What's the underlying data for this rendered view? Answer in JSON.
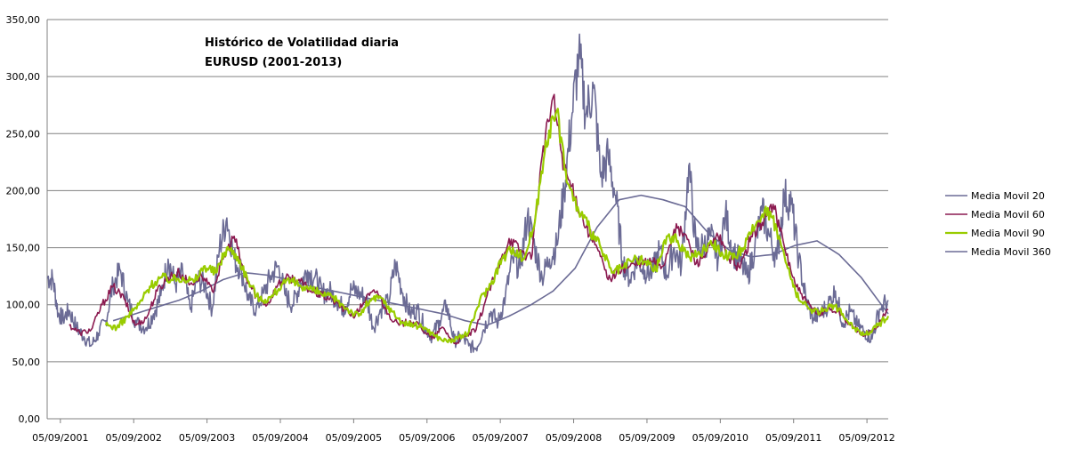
{
  "chart_data": {
    "type": "line",
    "title_lines": [
      "Histórico de Volatilidad diaria",
      "EURUSD (2001-2013)"
    ],
    "xlabel": "",
    "ylabel": "",
    "ylim": [
      0,
      350
    ],
    "yticks": [
      0,
      50,
      100,
      150,
      200,
      250,
      300,
      350
    ],
    "ytick_labels": [
      "0,00",
      "50,00",
      "100,00",
      "150,00",
      "200,00",
      "250,00",
      "300,00",
      "350,00"
    ],
    "xlim": [
      2001.5,
      2012.97
    ],
    "xticks": [
      2001.68,
      2002.68,
      2003.68,
      2004.68,
      2005.68,
      2006.68,
      2007.68,
      2008.68,
      2009.68,
      2010.68,
      2011.68,
      2012.68
    ],
    "xtick_labels": [
      "05/09/2001",
      "05/09/2002",
      "05/09/2003",
      "05/09/2004",
      "05/09/2005",
      "05/09/2006",
      "05/09/2007",
      "05/09/2008",
      "05/09/2009",
      "05/09/2010",
      "05/09/2011",
      "05/09/2012"
    ],
    "grid": "horizontal",
    "legend_position": "right",
    "series": [
      {
        "name": "Media Movil 20",
        "color": "#6b6b95",
        "width": 1.6,
        "x": [
          2001.5,
          2001.58,
          2001.65,
          2001.72,
          2001.8,
          2001.9,
          2002.0,
          2002.1,
          2002.2,
          2002.3,
          2002.4,
          2002.5,
          2002.6,
          2002.72,
          2002.85,
          2002.95,
          2003.05,
          2003.15,
          2003.25,
          2003.35,
          2003.45,
          2003.55,
          2003.65,
          2003.75,
          2003.85,
          2003.95,
          2004.05,
          2004.15,
          2004.25,
          2004.35,
          2004.45,
          2004.55,
          2004.65,
          2004.75,
          2004.85,
          2004.95,
          2005.05,
          2005.15,
          2005.25,
          2005.35,
          2005.45,
          2005.55,
          2005.65,
          2005.75,
          2005.85,
          2005.95,
          2006.05,
          2006.15,
          2006.25,
          2006.35,
          2006.45,
          2006.55,
          2006.65,
          2006.75,
          2006.85,
          2006.95,
          2007.05,
          2007.15,
          2007.25,
          2007.35,
          2007.45,
          2007.55,
          2007.65,
          2007.75,
          2007.85,
          2007.95,
          2008.05,
          2008.15,
          2008.25,
          2008.35,
          2008.45,
          2008.55,
          2008.65,
          2008.75,
          2008.85,
          2008.95,
          2009.05,
          2009.15,
          2009.25,
          2009.35,
          2009.45,
          2009.55,
          2009.65,
          2009.75,
          2009.85,
          2009.95,
          2010.05,
          2010.15,
          2010.25,
          2010.35,
          2010.45,
          2010.55,
          2010.65,
          2010.75,
          2010.85,
          2010.95,
          2011.05,
          2011.15,
          2011.25,
          2011.35,
          2011.45,
          2011.55,
          2011.65,
          2011.75,
          2011.85,
          2011.95,
          2012.05,
          2012.15,
          2012.25,
          2012.35,
          2012.45,
          2012.55,
          2012.65,
          2012.75,
          2012.85,
          2012.97
        ],
        "y": [
          124,
          122,
          92,
          88,
          95,
          80,
          72,
          64,
          75,
          86,
          118,
          130,
          102,
          84,
          80,
          92,
          108,
          140,
          118,
          128,
          96,
          122,
          118,
          96,
          150,
          176,
          140,
          130,
          104,
          96,
          110,
          125,
          134,
          108,
          100,
          118,
          130,
          124,
          110,
          112,
          104,
          96,
          114,
          110,
          106,
          80,
          96,
          102,
          136,
          110,
          92,
          96,
          80,
          72,
          86,
          100,
          68,
          72,
          64,
          62,
          78,
          94,
          84,
          108,
          140,
          132,
          178,
          150,
          124,
          140,
          152,
          200,
          262,
          318,
          268,
          290,
          212,
          230,
          196,
          138,
          122,
          140,
          130,
          128,
          148,
          126,
          150,
          134,
          222,
          150,
          152,
          160,
          140,
          180,
          146,
          138,
          124,
          150,
          182,
          160,
          140,
          196,
          188,
          140,
          104,
          88,
          92,
          100,
          112,
          84,
          94,
          82,
          76,
          70,
          96,
          104
        ]
      },
      {
        "name": "Media Movil 60",
        "color": "#8b1a50",
        "width": 1.6,
        "x": [
          2001.8,
          2001.95,
          2002.1,
          2002.25,
          2002.4,
          2002.55,
          2002.7,
          2002.85,
          2003.0,
          2003.15,
          2003.3,
          2003.45,
          2003.6,
          2003.75,
          2003.9,
          2004.05,
          2004.2,
          2004.35,
          2004.5,
          2004.65,
          2004.8,
          2004.95,
          2005.1,
          2005.25,
          2005.4,
          2005.55,
          2005.7,
          2005.85,
          2006.0,
          2006.15,
          2006.3,
          2006.45,
          2006.6,
          2006.75,
          2006.9,
          2007.05,
          2007.2,
          2007.35,
          2007.5,
          2007.65,
          2007.8,
          2007.95,
          2008.1,
          2008.25,
          2008.4,
          2008.55,
          2008.7,
          2008.85,
          2009.0,
          2009.15,
          2009.3,
          2009.45,
          2009.6,
          2009.75,
          2009.9,
          2010.05,
          2010.2,
          2010.35,
          2010.5,
          2010.65,
          2010.8,
          2010.95,
          2011.1,
          2011.25,
          2011.4,
          2011.55,
          2011.7,
          2011.85,
          2012.0,
          2012.15,
          2012.3,
          2012.45,
          2012.6,
          2012.75,
          2012.97
        ],
        "y": [
          82,
          75,
          78,
          100,
          116,
          105,
          82,
          88,
          112,
          124,
          128,
          118,
          126,
          112,
          140,
          160,
          124,
          108,
          100,
          118,
          124,
          120,
          112,
          108,
          104,
          96,
          90,
          106,
          112,
          92,
          82,
          86,
          80,
          70,
          80,
          66,
          72,
          78,
          108,
          132,
          158,
          148,
          140,
          230,
          282,
          220,
          194,
          168,
          150,
          122,
          130,
          134,
          136,
          138,
          134,
          166,
          162,
          136,
          146,
          160,
          140,
          132,
          160,
          172,
          188,
          152,
          118,
          102,
          92,
          96,
          94,
          82,
          74,
          76,
          96
        ]
      },
      {
        "name": "Media Movil 90",
        "color": "#99cc00",
        "width": 2.2,
        "x": [
          2002.3,
          2002.45,
          2002.6,
          2002.75,
          2002.9,
          2003.05,
          2003.2,
          2003.35,
          2003.5,
          2003.65,
          2003.8,
          2003.95,
          2004.1,
          2004.25,
          2004.4,
          2004.55,
          2004.7,
          2004.85,
          2005.0,
          2005.15,
          2005.3,
          2005.45,
          2005.6,
          2005.75,
          2005.9,
          2006.05,
          2006.2,
          2006.35,
          2006.5,
          2006.65,
          2006.8,
          2006.95,
          2007.1,
          2007.25,
          2007.4,
          2007.55,
          2007.7,
          2007.85,
          2008.0,
          2008.15,
          2008.3,
          2008.45,
          2008.6,
          2008.75,
          2008.9,
          2009.05,
          2009.2,
          2009.35,
          2009.5,
          2009.65,
          2009.8,
          2009.95,
          2010.1,
          2010.25,
          2010.4,
          2010.55,
          2010.7,
          2010.85,
          2011.0,
          2011.15,
          2011.3,
          2011.45,
          2011.6,
          2011.75,
          2011.9,
          2012.05,
          2012.2,
          2012.35,
          2012.5,
          2012.65,
          2012.8,
          2012.97
        ],
        "y": [
          82,
          80,
          90,
          100,
          116,
          124,
          122,
          124,
          120,
          134,
          128,
          150,
          142,
          120,
          104,
          106,
          118,
          120,
          116,
          112,
          108,
          104,
          96,
          90,
          104,
          106,
          94,
          84,
          82,
          80,
          72,
          68,
          70,
          76,
          104,
          118,
          140,
          150,
          140,
          172,
          244,
          270,
          206,
          182,
          166,
          150,
          128,
          132,
          140,
          138,
          130,
          160,
          156,
          142,
          144,
          156,
          146,
          140,
          150,
          168,
          186,
          166,
          132,
          104,
          96,
          94,
          100,
          92,
          80,
          74,
          80,
          90
        ]
      },
      {
        "name": "Media Movil 360",
        "color": "#6b6b95",
        "width": 1.6,
        "x": [
          2002.4,
          2002.7,
          2003.0,
          2003.3,
          2003.6,
          2003.9,
          2004.2,
          2004.5,
          2004.8,
          2005.1,
          2005.4,
          2005.7,
          2006.0,
          2006.3,
          2006.6,
          2006.9,
          2007.2,
          2007.5,
          2007.8,
          2008.1,
          2008.4,
          2008.7,
          2009.0,
          2009.3,
          2009.6,
          2009.9,
          2010.2,
          2010.5,
          2010.8,
          2011.1,
          2011.4,
          2011.7,
          2012.0,
          2012.3,
          2012.6,
          2012.97
        ],
        "y": [
          86,
          92,
          98,
          104,
          112,
          122,
          128,
          126,
          122,
          116,
          112,
          108,
          104,
          100,
          96,
          92,
          86,
          82,
          90,
          100,
          112,
          132,
          168,
          192,
          196,
          192,
          186,
          164,
          148,
          142,
          144,
          152,
          156,
          144,
          124,
          92
        ]
      }
    ]
  }
}
